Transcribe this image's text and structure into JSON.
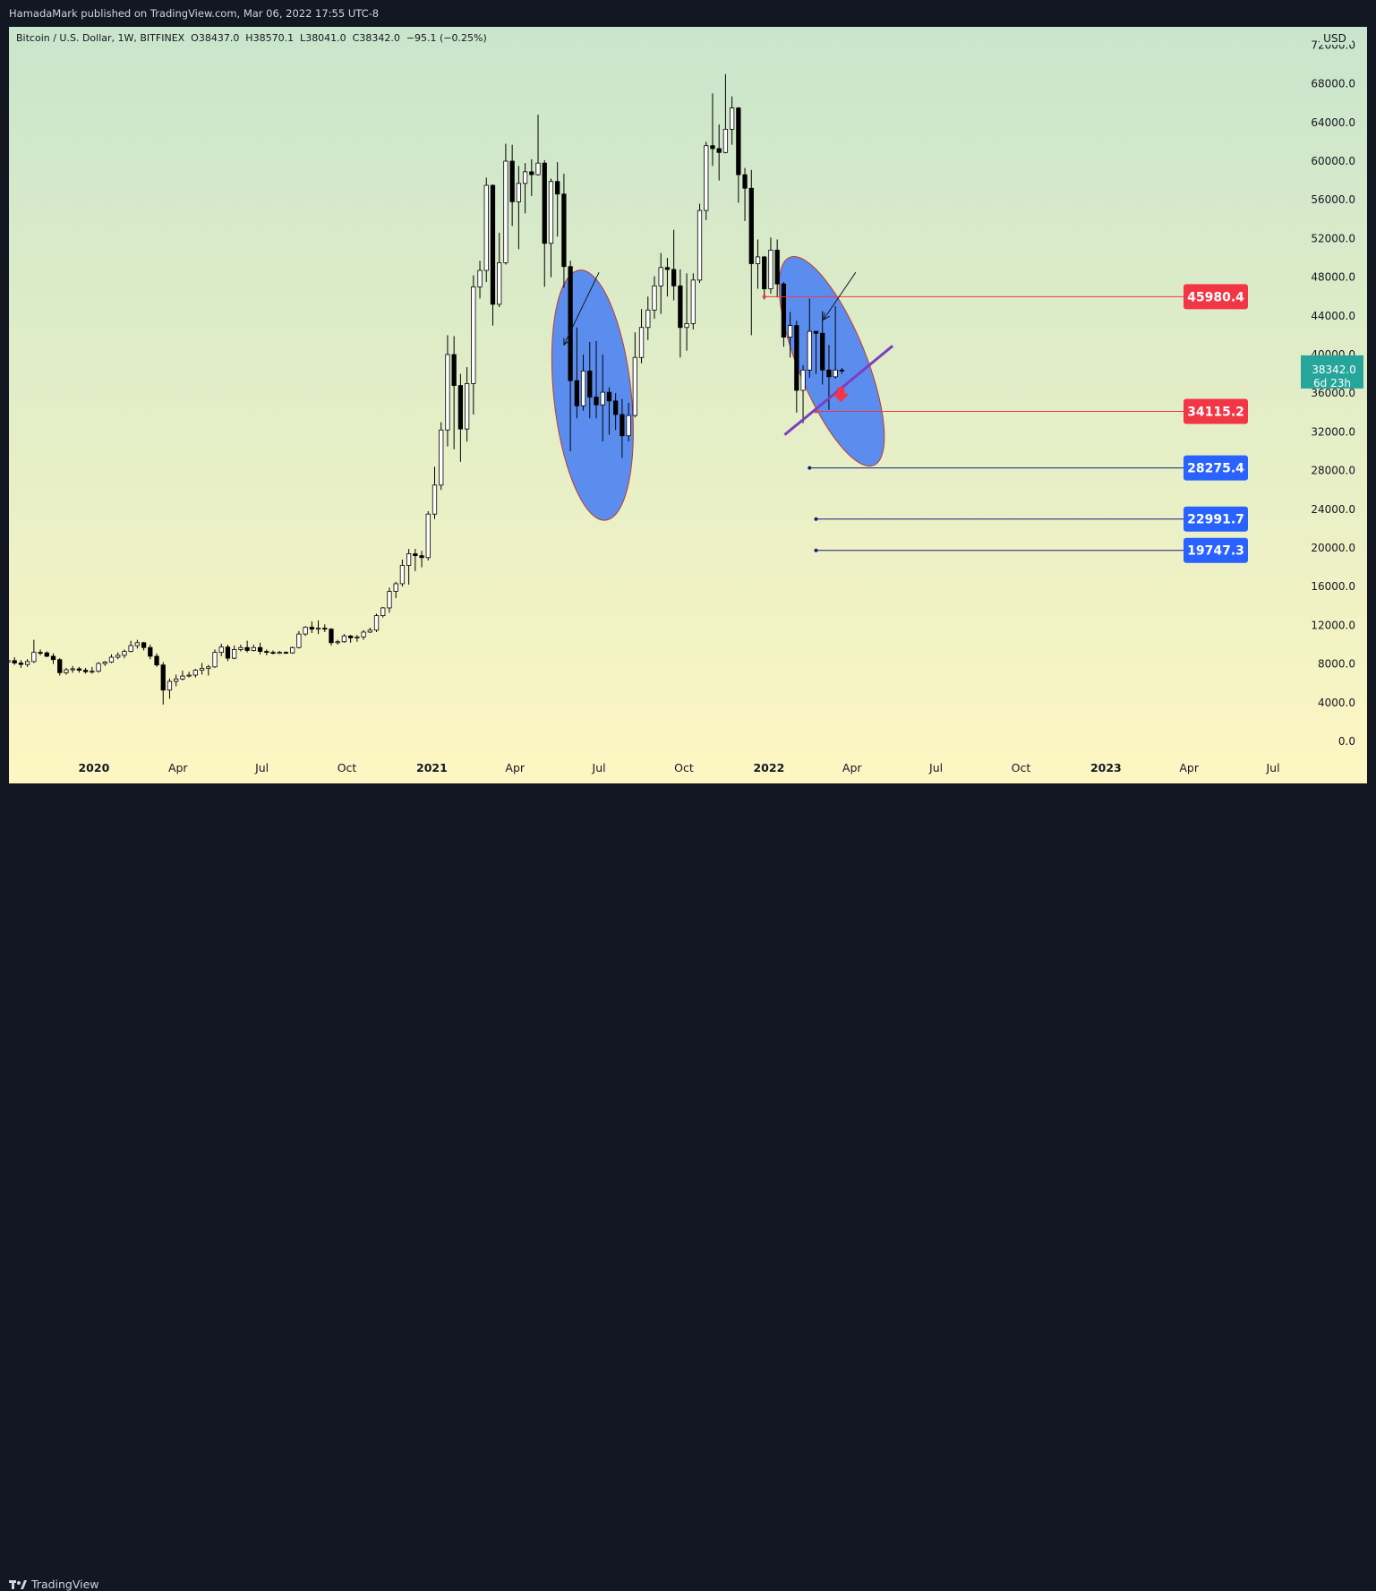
{
  "header": {
    "published": "HamadaMark published on TradingView.com, Mar 06, 2022 17:55 UTC-8"
  },
  "footer": {
    "brand": "TradingView"
  },
  "colors": {
    "frame": "#131722",
    "bg_top": "#c9e5cc",
    "bg_bottom": "#fdf6c2",
    "up_fill": "#ffffff",
    "down_fill": "#000000",
    "wick": "#000000",
    "ellipse_fill": "#5b8def",
    "ellipse_stroke": "#c0392b",
    "resistance": "#f23645",
    "support": "#2962ff",
    "support_line": "#131f78",
    "trendline": "#7b3fbf",
    "current_price": "#26a69a",
    "arrow": "#f23645"
  },
  "chart_data": {
    "type": "candlestick",
    "symbol_line": "Bitcoin / U.S. Dollar, 1W, BITFINEX  O38437.0  H38570.1  L38041.0  C38342.0  −95.1 (−0.25%)",
    "currency": "USD",
    "y_axis": {
      "min": 0,
      "max": 72000,
      "ticks": [
        "0.0",
        "4000.0",
        "8000.0",
        "12000.0",
        "16000.0",
        "20000.0",
        "24000.0",
        "28000.0",
        "32000.0",
        "36000.0",
        "40000.0",
        "44000.0",
        "48000.0",
        "52000.0",
        "56000.0",
        "60000.0",
        "64000.0",
        "68000.0",
        "72000.0"
      ]
    },
    "x_axis": {
      "start": "2019-10-01",
      "end": "2023-07-31",
      "ticks": [
        {
          "label": "2020",
          "date": "2020-01-01",
          "bold": true
        },
        {
          "label": "Apr",
          "date": "2020-04-01",
          "bold": false
        },
        {
          "label": "Jul",
          "date": "2020-07-01",
          "bold": false
        },
        {
          "label": "Oct",
          "date": "2020-10-01",
          "bold": false
        },
        {
          "label": "2021",
          "date": "2021-01-01",
          "bold": true
        },
        {
          "label": "Apr",
          "date": "2021-04-01",
          "bold": false
        },
        {
          "label": "Jul",
          "date": "2021-07-01",
          "bold": false
        },
        {
          "label": "Oct",
          "date": "2021-10-01",
          "bold": false
        },
        {
          "label": "2022",
          "date": "2022-01-01",
          "bold": true
        },
        {
          "label": "Apr",
          "date": "2022-04-01",
          "bold": false
        },
        {
          "label": "Jul",
          "date": "2022-07-01",
          "bold": false
        },
        {
          "label": "Oct",
          "date": "2022-10-01",
          "bold": false
        },
        {
          "label": "2023",
          "date": "2023-01-01",
          "bold": true
        },
        {
          "label": "Apr",
          "date": "2023-04-01",
          "bold": false
        },
        {
          "label": "Jul",
          "date": "2023-07-01",
          "bold": false
        }
      ]
    },
    "candles_start": "2019-09-30",
    "candle_interval": "1 week",
    "ohlc": [
      [
        8200,
        8800,
        7800,
        8350
      ],
      [
        8350,
        8700,
        7900,
        8100
      ],
      [
        8100,
        8400,
        7600,
        7950
      ],
      [
        7950,
        8500,
        7700,
        8250
      ],
      [
        8250,
        10500,
        8100,
        9200
      ],
      [
        9200,
        9500,
        8900,
        9150
      ],
      [
        9150,
        9300,
        8700,
        8800
      ],
      [
        8800,
        9100,
        8000,
        8450
      ],
      [
        8450,
        8600,
        6800,
        7100
      ],
      [
        7100,
        7600,
        6900,
        7400
      ],
      [
        7400,
        7800,
        7100,
        7500
      ],
      [
        7500,
        7700,
        7100,
        7350
      ],
      [
        7350,
        7600,
        7000,
        7200
      ],
      [
        7200,
        7700,
        7000,
        7250
      ],
      [
        7250,
        8200,
        7100,
        8050
      ],
      [
        8050,
        8300,
        7800,
        8200
      ],
      [
        8200,
        9000,
        8100,
        8700
      ],
      [
        8700,
        9200,
        8500,
        8900
      ],
      [
        8900,
        9500,
        8600,
        9300
      ],
      [
        9300,
        10400,
        9200,
        9900
      ],
      [
        9900,
        10500,
        9600,
        10200
      ],
      [
        10200,
        10300,
        9400,
        9700
      ],
      [
        9700,
        10000,
        8500,
        8800
      ],
      [
        8800,
        9100,
        7700,
        7900
      ],
      [
        7900,
        8200,
        3800,
        5300
      ],
      [
        5300,
        6500,
        4400,
        6200
      ],
      [
        6200,
        6900,
        5700,
        6450
      ],
      [
        6450,
        7300,
        6300,
        6750
      ],
      [
        6750,
        7200,
        6600,
        6850
      ],
      [
        6850,
        7500,
        6600,
        7350
      ],
      [
        7350,
        8100,
        6900,
        7550
      ],
      [
        7550,
        7900,
        6800,
        7700
      ],
      [
        7700,
        9500,
        7600,
        9200
      ],
      [
        9200,
        10100,
        8800,
        9750
      ],
      [
        9750,
        10000,
        8300,
        8600
      ],
      [
        8600,
        9900,
        8500,
        9500
      ],
      [
        9500,
        10000,
        9300,
        9700
      ],
      [
        9700,
        10400,
        9200,
        9400
      ],
      [
        9400,
        10000,
        9300,
        9700
      ],
      [
        9700,
        10200,
        9000,
        9300
      ],
      [
        9300,
        9500,
        8900,
        9200
      ],
      [
        9200,
        9400,
        9000,
        9100
      ],
      [
        9100,
        9350,
        9050,
        9200
      ],
      [
        9200,
        9300,
        9050,
        9150
      ],
      [
        9150,
        9800,
        9050,
        9700
      ],
      [
        9700,
        11400,
        9600,
        11100
      ],
      [
        11100,
        11900,
        10900,
        11800
      ],
      [
        11800,
        12400,
        11200,
        11600
      ],
      [
        11600,
        12500,
        11100,
        11700
      ],
      [
        11700,
        12100,
        11300,
        11600
      ],
      [
        11600,
        11700,
        9900,
        10200
      ],
      [
        10200,
        10500,
        10000,
        10300
      ],
      [
        10300,
        11100,
        10200,
        10900
      ],
      [
        10900,
        11000,
        10200,
        10700
      ],
      [
        10700,
        11000,
        10300,
        10800
      ],
      [
        10800,
        11500,
        10500,
        11300
      ],
      [
        11300,
        11750,
        11200,
        11500
      ],
      [
        11500,
        13200,
        11300,
        13000
      ],
      [
        13000,
        13900,
        12800,
        13800
      ],
      [
        13800,
        15900,
        13300,
        15500
      ],
      [
        15500,
        16500,
        14800,
        16300
      ],
      [
        16300,
        18800,
        16000,
        18200
      ],
      [
        18200,
        19900,
        16200,
        19400
      ],
      [
        19400,
        19900,
        17600,
        19200
      ],
      [
        19200,
        19700,
        18000,
        19000
      ],
      [
        19000,
        23800,
        18700,
        23500
      ],
      [
        23500,
        28400,
        23000,
        26500
      ],
      [
        26500,
        33000,
        26000,
        32200
      ],
      [
        32200,
        42000,
        30500,
        40000
      ],
      [
        40000,
        41900,
        30200,
        36800
      ],
      [
        36800,
        38000,
        28900,
        32300
      ],
      [
        32300,
        38700,
        31000,
        37000
      ],
      [
        37000,
        48200,
        33800,
        47000
      ],
      [
        47000,
        49700,
        45800,
        48700
      ],
      [
        48700,
        58300,
        47500,
        57500
      ],
      [
        57500,
        57600,
        43000,
        45200
      ],
      [
        45200,
        52600,
        44900,
        49500
      ],
      [
        49500,
        61800,
        49300,
        60000
      ],
      [
        60000,
        61700,
        53300,
        55800
      ],
      [
        55800,
        59500,
        50900,
        57700
      ],
      [
        57700,
        59800,
        54600,
        58900
      ],
      [
        58900,
        60200,
        56400,
        58600
      ],
      [
        58600,
        64800,
        58500,
        59800
      ],
      [
        59800,
        60100,
        47000,
        51500
      ],
      [
        51500,
        58200,
        48000,
        57900
      ],
      [
        57900,
        59900,
        52200,
        56600
      ],
      [
        56600,
        58700,
        46900,
        49100
      ],
      [
        49100,
        49700,
        30000,
        37300
      ],
      [
        37300,
        42800,
        33400,
        34700
      ],
      [
        34700,
        40000,
        34200,
        38300
      ],
      [
        38300,
        41300,
        33400,
        35600
      ],
      [
        35600,
        41400,
        33400,
        34800
      ],
      [
        34800,
        40000,
        31000,
        36100
      ],
      [
        36100,
        36600,
        31700,
        35200
      ],
      [
        35200,
        36000,
        32200,
        33800
      ],
      [
        33800,
        35400,
        29300,
        31600
      ],
      [
        31600,
        35000,
        31000,
        33700
      ],
      [
        33700,
        42300,
        33500,
        39700
      ],
      [
        39700,
        44700,
        39100,
        42800
      ],
      [
        42800,
        46000,
        41500,
        44600
      ],
      [
        44600,
        48100,
        43700,
        47100
      ],
      [
        47100,
        50500,
        44200,
        49000
      ],
      [
        49000,
        50000,
        46000,
        48800
      ],
      [
        48800,
        52900,
        45600,
        47100
      ],
      [
        47100,
        48800,
        39700,
        42800
      ],
      [
        42800,
        48400,
        40400,
        43200
      ],
      [
        43200,
        48400,
        42600,
        47700
      ],
      [
        47700,
        55600,
        47400,
        54900
      ],
      [
        54900,
        62000,
        53900,
        61600
      ],
      [
        61600,
        67000,
        59500,
        61300
      ],
      [
        61300,
        63800,
        58000,
        60900
      ],
      [
        60900,
        69000,
        60800,
        63300
      ],
      [
        63300,
        66700,
        61700,
        65500
      ],
      [
        65500,
        65600,
        55700,
        58600
      ],
      [
        58600,
        59300,
        53800,
        57200
      ],
      [
        57200,
        59100,
        42000,
        49400
      ],
      [
        49400,
        51900,
        46800,
        50100
      ],
      [
        50100,
        50200,
        45700,
        46800
      ],
      [
        46800,
        52100,
        46300,
        50800
      ],
      [
        50800,
        51900,
        45900,
        47300
      ],
      [
        47300,
        47500,
        40800,
        41800
      ],
      [
        41800,
        44400,
        39700,
        43000
      ],
      [
        43000,
        43500,
        34000,
        36300
      ],
      [
        36300,
        38900,
        32900,
        38400
      ],
      [
        38400,
        45800,
        37600,
        42400
      ],
      [
        42400,
        42400,
        38000,
        42200
      ],
      [
        42200,
        44500,
        36900,
        38400
      ],
      [
        38400,
        41000,
        34300,
        37700
      ],
      [
        37700,
        45000,
        37500,
        38400
      ],
      [
        38400,
        38600,
        38000,
        38342
      ]
    ],
    "price_levels": [
      {
        "label": "45980.4",
        "value": 45980.4,
        "kind": "resistance",
        "from": "2021-12-27"
      },
      {
        "label": "34115.2",
        "value": 34115.2,
        "kind": "resistance",
        "from": "2022-02-21"
      },
      {
        "label": "28275.4",
        "value": 28275.4,
        "kind": "support",
        "from": "2022-02-14"
      },
      {
        "label": "22991.7",
        "value": 22991.7,
        "kind": "support",
        "from": "2022-02-21"
      },
      {
        "label": "19747.3",
        "value": 19747.3,
        "kind": "support",
        "from": "2022-02-21"
      }
    ],
    "current_price": {
      "value": 38342.0,
      "label": "38342.0",
      "countdown": "6d 23h"
    },
    "ellipses": [
      {
        "center_date": "2021-06-24",
        "center_value": 35800,
        "half_width_days": 42,
        "half_height_value": 13000,
        "rotation_deg": -6
      },
      {
        "center_date": "2022-03-10",
        "center_value": 39300,
        "half_width_days": 37,
        "half_height_value": 11600,
        "rotation_deg": -22
      }
    ],
    "trendline": {
      "from": {
        "date": "2022-01-18",
        "value": 31700
      },
      "to": {
        "date": "2022-05-15",
        "value": 40900
      }
    },
    "arrows": [
      {
        "from": {
          "date": "2021-07-01",
          "value": 48500
        },
        "to": {
          "date": "2021-05-24",
          "value": 41000
        }
      },
      {
        "from": {
          "date": "2022-04-05",
          "value": 48500
        },
        "to": {
          "date": "2022-03-01",
          "value": 43600
        }
      }
    ],
    "down_marker": {
      "date": "2022-03-20",
      "value": 35400
    }
  }
}
